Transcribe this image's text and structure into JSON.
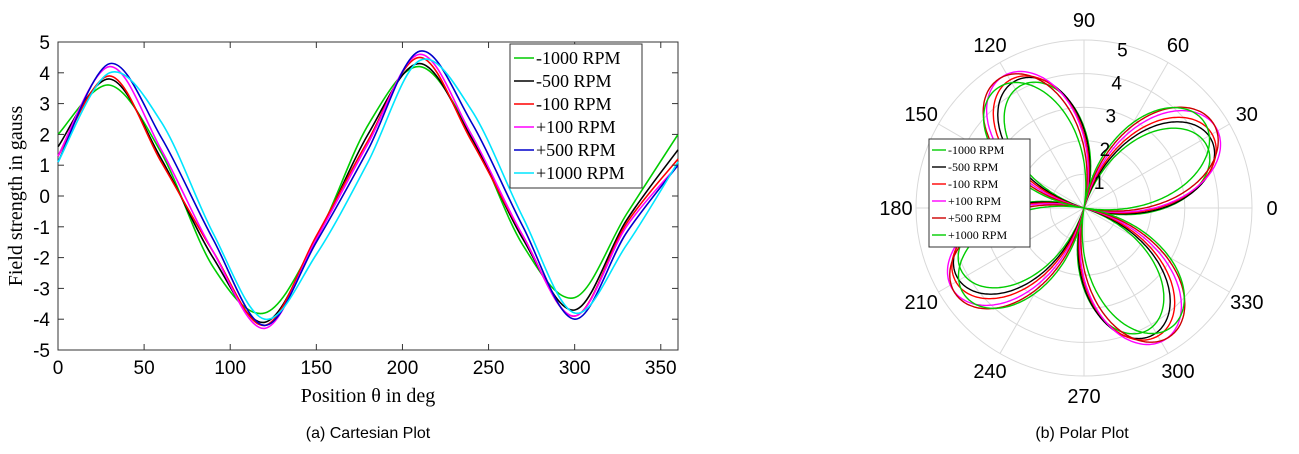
{
  "chart_data": [
    {
      "type": "line",
      "caption": "(a) Cartesian Plot",
      "xlabel": "Position θ in deg",
      "ylabel": "Field strength in gauss",
      "xlim": [
        0,
        360
      ],
      "ylim": [
        -5,
        5
      ],
      "xticks": [
        "0",
        "50",
        "100",
        "150",
        "200",
        "250",
        "300",
        "350"
      ],
      "yticks": [
        "5",
        "4",
        "3",
        "2",
        "1",
        "0",
        "-1",
        "-2",
        "-3",
        "-4",
        "-5"
      ],
      "grid": false,
      "legend_position": "top-right",
      "x": [
        0,
        30,
        60,
        90,
        120,
        150,
        180,
        210,
        240,
        270,
        300,
        330,
        360
      ],
      "series": [
        {
          "name": "-1000 RPM",
          "color": "#00cc00",
          "values": [
            2.0,
            3.6,
            1.4,
            -2.3,
            -3.8,
            -1.4,
            2.3,
            4.2,
            2.0,
            -1.6,
            -3.3,
            -0.6,
            2.0
          ]
        },
        {
          "name": "-500 RPM",
          "color": "#000000",
          "values": [
            1.6,
            3.8,
            1.2,
            -2.0,
            -4.1,
            -1.4,
            2.0,
            4.3,
            1.9,
            -1.4,
            -3.7,
            -0.8,
            1.5
          ]
        },
        {
          "name": "-100 RPM",
          "color": "#ff0000",
          "values": [
            1.3,
            3.9,
            1.1,
            -1.8,
            -4.2,
            -1.3,
            1.8,
            4.5,
            1.8,
            -1.3,
            -3.9,
            -0.9,
            1.2
          ]
        },
        {
          "name": "+100 RPM",
          "color": "#ff00ff",
          "values": [
            1.3,
            4.2,
            1.5,
            -1.8,
            -4.3,
            -1.4,
            1.7,
            4.6,
            2.0,
            -1.3,
            -3.9,
            -1.0,
            1.0
          ]
        },
        {
          "name": "+500 RPM",
          "color": "#0000cc",
          "values": [
            1.1,
            4.3,
            1.9,
            -1.4,
            -4.2,
            -1.5,
            1.5,
            4.7,
            2.4,
            -1.0,
            -4.0,
            -1.2,
            1.0
          ]
        },
        {
          "name": "+1000 RPM",
          "color": "#00e5ff",
          "values": [
            1.1,
            4.0,
            2.4,
            -1.2,
            -4.0,
            -1.9,
            1.1,
            4.4,
            2.8,
            -0.7,
            -3.8,
            -1.6,
            1.1
          ]
        }
      ]
    },
    {
      "type": "polar",
      "caption": "(b) Polar Plot",
      "angle_ticks_deg": [
        "0",
        "30",
        "60",
        "90",
        "120",
        "150",
        "180",
        "210",
        "240",
        "270",
        "300",
        "330"
      ],
      "radial_ticks": [
        "1",
        "2",
        "3",
        "4",
        "5"
      ],
      "rmax": 5,
      "grid": true,
      "legend_position": "left",
      "series": [
        {
          "name": "-1000 RPM",
          "color": "#00cc00",
          "r_max": 4.1,
          "offset_deg": -3
        },
        {
          "name": "-500 RPM",
          "color": "#000000",
          "r_max": 4.3,
          "offset_deg": -1.5
        },
        {
          "name": "-100 RPM",
          "color": "#ff0000",
          "r_max": 4.4,
          "offset_deg": 0
        },
        {
          "name": "+100 RPM",
          "color": "#ff00ff",
          "r_max": 4.6,
          "offset_deg": 1.5
        },
        {
          "name": "+500 RPM",
          "color": "#cc0000",
          "r_max": 4.6,
          "offset_deg": 3.5
        },
        {
          "name": "+1000 RPM",
          "color": "#00cc00",
          "r_max": 4.4,
          "offset_deg": 6
        }
      ]
    }
  ]
}
